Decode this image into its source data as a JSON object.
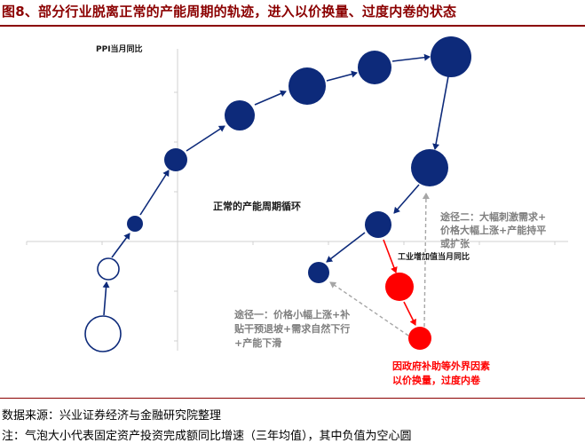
{
  "title": "图8、部分行业脱离正常的产能周期的轨迹，进入以价换量、过度内卷的状态",
  "axes": {
    "y_label": "PPI当月同比",
    "x_label": "工业增加值当月同比"
  },
  "labels": {
    "normal_cycle": "正常的产能周期循环",
    "path1_line1": "途径一：价格小幅上涨+补",
    "path1_line2": "贴干预退坡+需求自然下行",
    "path1_line3": "+产能下滑",
    "path2_line1": "途径二：大幅刺激需求+",
    "path2_line2": "价格大幅上涨+产能持平",
    "path2_line3": "或扩张",
    "external_line1": "因政府补助等外界因素",
    "external_line2": "以价换量，过度内卷"
  },
  "colors": {
    "navy": "#0d2a7a",
    "red": "#ff0000",
    "title": "#8b0000",
    "gray_dash": "#a6a6a6",
    "gray_text": "#7f7f7f"
  },
  "notes": {
    "source": "数据来源：兴业证券经济与金融研究院整理",
    "legend": "注：气泡大小代表固定资产投资完成额同比增速（三年均值），其中负值为空心圆"
  }
}
